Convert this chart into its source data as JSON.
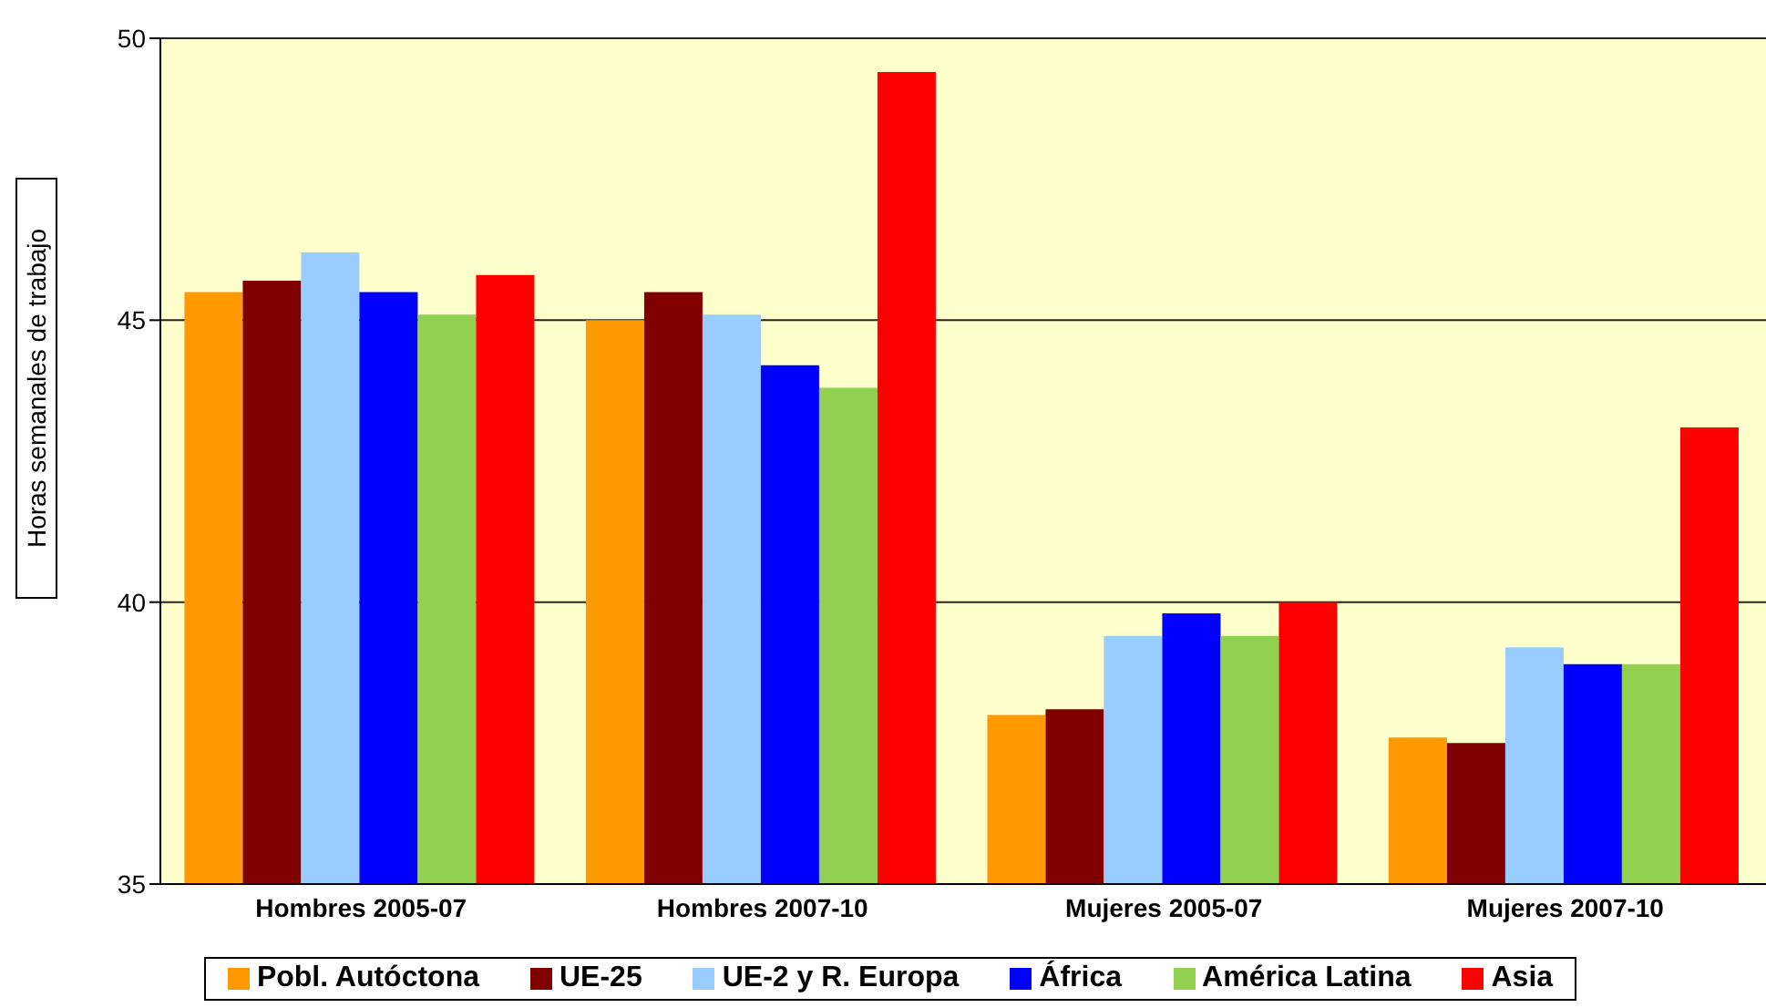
{
  "chart_data": {
    "type": "bar",
    "ylabel": "Horas semanales de trabajo",
    "categories": [
      "Hombres 2005-07",
      "Hombres 2007-10",
      "Mujeres 2005-07",
      "Mujeres 2007-10"
    ],
    "series": [
      {
        "name": "Pobl. Autóctona",
        "color": "#ff9900",
        "values": [
          45.5,
          45.0,
          38.0,
          37.6
        ]
      },
      {
        "name": "UE-25",
        "color": "#800000",
        "values": [
          45.7,
          45.5,
          38.1,
          37.5
        ]
      },
      {
        "name": "UE-2 y R. Europa",
        "color": "#99ccff",
        "values": [
          46.2,
          45.1,
          39.4,
          39.2
        ]
      },
      {
        "name": "África",
        "color": "#0000ff",
        "values": [
          45.5,
          44.2,
          39.8,
          38.9
        ]
      },
      {
        "name": "América Latina",
        "color": "#92d050",
        "values": [
          45.1,
          43.8,
          39.4,
          38.9
        ]
      },
      {
        "name": "Asia",
        "color": "#ff0000",
        "values": [
          45.8,
          49.4,
          40.0,
          43.1
        ]
      }
    ],
    "ylim": [
      35,
      50
    ],
    "yticks": [
      35,
      40,
      45,
      50
    ],
    "grid": "y",
    "legend": "bottom"
  }
}
